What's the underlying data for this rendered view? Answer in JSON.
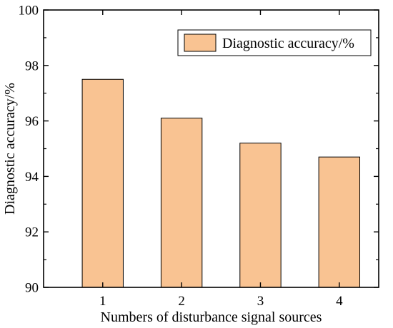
{
  "chart_data": {
    "type": "bar",
    "categories": [
      "1",
      "2",
      "3",
      "4"
    ],
    "series": [
      {
        "name": "Diagnostic accuracy/%",
        "values": [
          97.5,
          96.1,
          95.2,
          94.7
        ]
      }
    ],
    "xlabel": "Numbers of disturbance signal sources",
    "ylabel": "Diagnostic accuracy/%",
    "ylim": [
      90,
      100
    ],
    "yticks": [
      90,
      92,
      94,
      96,
      98,
      100
    ],
    "bar_color": "#f9c392",
    "bar_edge_color": "#000000",
    "grid": false,
    "legend_position": "top-right"
  }
}
